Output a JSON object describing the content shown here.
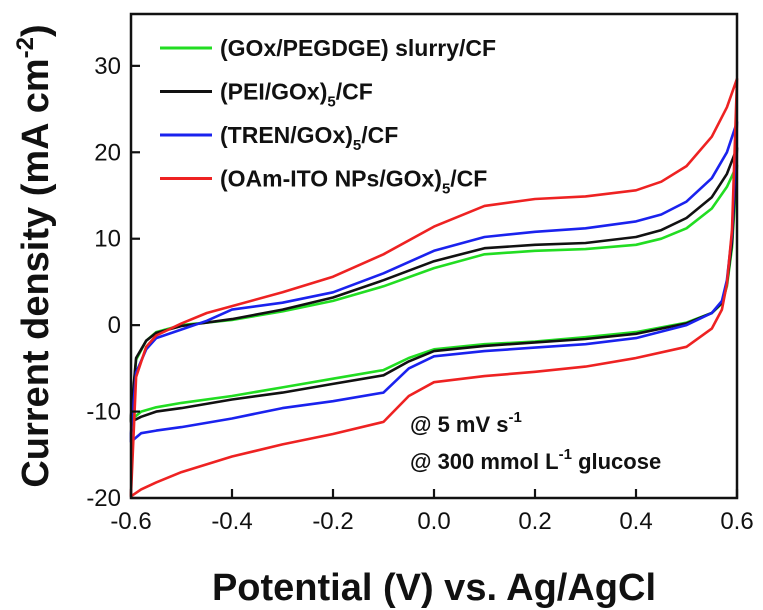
{
  "chart_data": {
    "type": "line",
    "xlabel": "Potential (V) vs. Ag/AgCl",
    "ylabel": {
      "text": "Current density (mA cm",
      "sup": "-2",
      "close": ")"
    },
    "xlim": [
      -0.6,
      0.6
    ],
    "ylim": [
      -20,
      36
    ],
    "x_ticks": [
      -0.6,
      -0.4,
      -0.2,
      0.0,
      0.2,
      0.4,
      0.6
    ],
    "x_tick_labels": [
      "-0.6",
      "-0.4",
      "-0.2",
      "0.0",
      "0.2",
      "0.4",
      "0.6"
    ],
    "y_ticks": [
      -20,
      -10,
      0,
      10,
      20,
      30
    ],
    "y_tick_labels": [
      "-20",
      "-10",
      "0",
      "10",
      "20",
      "30"
    ],
    "grid": false,
    "legend_position": "top-left",
    "annotations": [
      {
        "parts": [
          {
            "t": "@ 5 mV s"
          },
          {
            "t": "-1",
            "sup": true
          }
        ]
      },
      {
        "parts": [
          {
            "t": "@ 300 mmol L"
          },
          {
            "t": "-1",
            "sup": true
          },
          {
            "t": " glucose"
          }
        ]
      }
    ],
    "series": [
      {
        "name": "(GOx/PEGDGE) slurry/CF",
        "legend_parts": [
          {
            "t": "(GOx/PEGDGE) slurry/CF"
          }
        ],
        "color": "#22dd22",
        "forward_x": [
          -0.6,
          -0.59,
          -0.57,
          -0.55,
          -0.5,
          -0.45,
          -0.4,
          -0.3,
          -0.2,
          -0.1,
          0.0,
          0.1,
          0.2,
          0.3,
          0.4,
          0.45,
          0.5,
          0.55,
          0.58,
          0.6
        ],
        "forward_y": [
          -11.0,
          -4.0,
          -1.8,
          -0.8,
          0.0,
          0.3,
          0.6,
          1.6,
          2.8,
          4.5,
          6.6,
          8.2,
          8.6,
          8.8,
          9.3,
          10.0,
          11.2,
          13.5,
          16.0,
          18.5
        ],
        "reverse_x": [
          0.6,
          0.59,
          0.58,
          0.57,
          0.55,
          0.5,
          0.4,
          0.3,
          0.2,
          0.1,
          0.0,
          -0.05,
          -0.1,
          -0.2,
          -0.3,
          -0.4,
          -0.5,
          -0.55,
          -0.58,
          -0.6
        ],
        "reverse_y": [
          18.5,
          9.0,
          4.5,
          2.5,
          1.4,
          0.3,
          -0.8,
          -1.4,
          -1.9,
          -2.2,
          -2.8,
          -3.8,
          -5.2,
          -6.2,
          -7.2,
          -8.2,
          -9.0,
          -9.5,
          -10.0,
          -11.0
        ]
      },
      {
        "name": "(PEI/GOx)5/CF",
        "legend_parts": [
          {
            "t": "(PEI/GOx)"
          },
          {
            "t": "5",
            "sub": true
          },
          {
            "t": "/CF"
          }
        ],
        "color": "#111111",
        "forward_x": [
          -0.6,
          -0.59,
          -0.57,
          -0.55,
          -0.5,
          -0.45,
          -0.4,
          -0.3,
          -0.2,
          -0.1,
          0.0,
          0.1,
          0.2,
          0.3,
          0.4,
          0.45,
          0.5,
          0.55,
          0.58,
          0.6
        ],
        "forward_y": [
          -10.5,
          -3.8,
          -1.8,
          -0.9,
          -0.1,
          0.3,
          0.7,
          1.8,
          3.2,
          5.2,
          7.4,
          8.9,
          9.3,
          9.5,
          10.2,
          11.0,
          12.4,
          14.8,
          17.5,
          20.5
        ],
        "reverse_x": [
          0.6,
          0.59,
          0.58,
          0.57,
          0.55,
          0.5,
          0.4,
          0.3,
          0.2,
          0.1,
          0.0,
          -0.05,
          -0.1,
          -0.2,
          -0.3,
          -0.4,
          -0.5,
          -0.55,
          -0.58,
          -0.6
        ],
        "reverse_y": [
          20.5,
          9.5,
          4.8,
          2.6,
          1.4,
          0.2,
          -1.0,
          -1.6,
          -2.0,
          -2.4,
          -3.0,
          -4.2,
          -5.8,
          -6.8,
          -7.8,
          -8.6,
          -9.6,
          -10.0,
          -10.6,
          -11.2
        ]
      },
      {
        "name": "(TREN/GOx)5/CF",
        "legend_parts": [
          {
            "t": "(TREN/GOx)"
          },
          {
            "t": "5",
            "sub": true
          },
          {
            "t": "/CF"
          }
        ],
        "color": "#1a22ee",
        "forward_x": [
          -0.6,
          -0.59,
          -0.57,
          -0.55,
          -0.5,
          -0.45,
          -0.4,
          -0.3,
          -0.2,
          -0.1,
          0.0,
          0.1,
          0.2,
          0.3,
          0.4,
          0.45,
          0.5,
          0.55,
          0.58,
          0.6
        ],
        "forward_y": [
          -12.5,
          -5.5,
          -2.8,
          -1.5,
          -0.5,
          0.5,
          1.8,
          2.6,
          3.8,
          6.0,
          8.6,
          10.2,
          10.8,
          11.2,
          12.0,
          12.8,
          14.3,
          17.0,
          20.0,
          23.5
        ],
        "reverse_x": [
          0.6,
          0.59,
          0.58,
          0.57,
          0.55,
          0.5,
          0.4,
          0.3,
          0.2,
          0.1,
          0.0,
          -0.05,
          -0.1,
          -0.2,
          -0.3,
          -0.4,
          -0.5,
          -0.55,
          -0.58,
          -0.6
        ],
        "reverse_y": [
          23.5,
          10.5,
          5.2,
          2.8,
          1.4,
          0.0,
          -1.5,
          -2.2,
          -2.6,
          -3.0,
          -3.6,
          -5.0,
          -7.8,
          -8.8,
          -9.6,
          -10.8,
          -11.8,
          -12.2,
          -12.5,
          -13.5
        ]
      },
      {
        "name": "(OAm-ITO NPs/GOx)5/CF",
        "legend_parts": [
          {
            "t": "(OAm-ITO NPs/GOx)"
          },
          {
            "t": "5",
            "sub": true
          },
          {
            "t": "/CF"
          }
        ],
        "color": "#ee2222",
        "forward_x": [
          -0.6,
          -0.59,
          -0.57,
          -0.55,
          -0.5,
          -0.45,
          -0.4,
          -0.3,
          -0.2,
          -0.1,
          0.0,
          0.1,
          0.2,
          0.3,
          0.4,
          0.45,
          0.5,
          0.55,
          0.58,
          0.6
        ],
        "forward_y": [
          -19.5,
          -6.0,
          -2.5,
          -1.2,
          0.2,
          1.4,
          2.2,
          3.8,
          5.6,
          8.2,
          11.4,
          13.8,
          14.6,
          14.9,
          15.6,
          16.6,
          18.4,
          21.8,
          25.2,
          28.5
        ],
        "reverse_x": [
          0.6,
          0.59,
          0.58,
          0.57,
          0.55,
          0.5,
          0.4,
          0.3,
          0.2,
          0.1,
          0.0,
          -0.05,
          -0.1,
          -0.2,
          -0.3,
          -0.4,
          -0.5,
          -0.55,
          -0.58,
          -0.6
        ],
        "reverse_y": [
          28.5,
          11.0,
          4.8,
          1.8,
          -0.4,
          -2.5,
          -3.8,
          -4.8,
          -5.4,
          -5.9,
          -6.6,
          -8.2,
          -11.2,
          -12.6,
          -13.8,
          -15.2,
          -17.0,
          -18.2,
          -19.0,
          -19.8
        ]
      }
    ]
  }
}
